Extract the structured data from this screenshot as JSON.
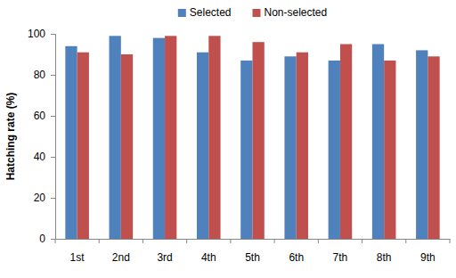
{
  "chart_data": {
    "type": "bar",
    "y_label": "Hatching rate (%)",
    "categories": [
      "1st",
      "2nd",
      "3rd",
      "4th",
      "5th",
      "6th",
      "7th",
      "8th",
      "9th"
    ],
    "series": [
      {
        "name": "Selected",
        "color": "#4f81bd",
        "values": [
          94,
          99,
          98,
          91,
          87,
          89,
          87,
          95,
          92
        ]
      },
      {
        "name": "Non-selected",
        "color": "#c0504d",
        "values": [
          91,
          90,
          99,
          99,
          96,
          91,
          95,
          87,
          89
        ]
      }
    ],
    "ylim": [
      0,
      100
    ],
    "yticks": [
      0,
      20,
      40,
      60,
      80,
      100
    ],
    "legend": "top",
    "grid": false
  }
}
